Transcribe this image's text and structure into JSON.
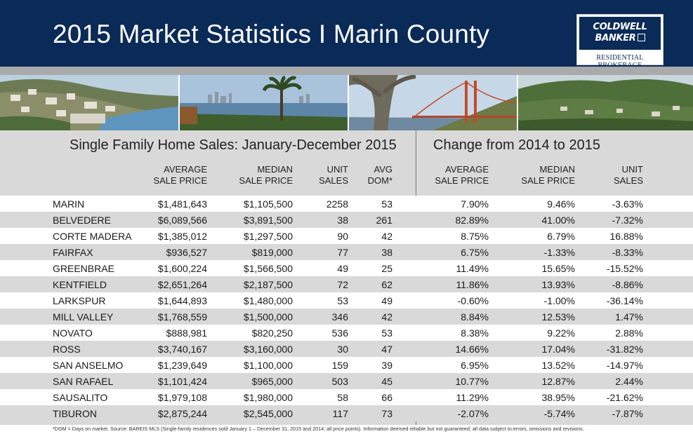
{
  "header": {
    "title": "2015 Market Statistics I Marin County",
    "logo_line1": "COLDWELL",
    "logo_line2": "BANKER",
    "logo_sub": "RESIDENTIAL BROKERAGE"
  },
  "left_section_title": "Single Family Home Sales: January-December 2015",
  "right_section_title": "Change from 2014 to 2015",
  "columns": {
    "avg_sale_price": [
      "AVERAGE",
      "SALE PRICE"
    ],
    "median_sale_price": [
      "MEDIAN",
      "SALE PRICE"
    ],
    "unit_sales": [
      "UNIT",
      "SALES"
    ],
    "avg_dom": [
      "AVG",
      "DOM*"
    ],
    "change_avg_sale_price": [
      "AVERAGE",
      "SALE PRICE"
    ],
    "change_median_sale_price": [
      "MEDIAN",
      "SALE PRICE"
    ],
    "change_unit_sales": [
      "UNIT",
      "SALES"
    ]
  },
  "rows": [
    {
      "name": "MARIN",
      "avg": "$1,481,643",
      "median": "$1,105,500",
      "units": "2258",
      "dom": "53",
      "ch_avg": "7.90%",
      "ch_median": "9.46%",
      "ch_units": "-3.63%"
    },
    {
      "name": "BELVEDERE",
      "avg": "$6,089,566",
      "median": "$3,891,500",
      "units": "38",
      "dom": "261",
      "ch_avg": "82.89%",
      "ch_median": "41.00%",
      "ch_units": "-7.32%"
    },
    {
      "name": "CORTE MADERA",
      "avg": "$1,385,012",
      "median": "$1,297,500",
      "units": "90",
      "dom": "42",
      "ch_avg": "8.75%",
      "ch_median": "6.79%",
      "ch_units": "16.88%"
    },
    {
      "name": "FAIRFAX",
      "avg": "$936,527",
      "median": "$819,000",
      "units": "77",
      "dom": "38",
      "ch_avg": "6.75%",
      "ch_median": "-1.33%",
      "ch_units": "-8.33%"
    },
    {
      "name": "GREENBRAE",
      "avg": "$1,600,224",
      "median": "$1,566,500",
      "units": "49",
      "dom": "25",
      "ch_avg": "11.49%",
      "ch_median": "15.65%",
      "ch_units": "-15.52%"
    },
    {
      "name": "KENTFIELD",
      "avg": "$2,651,264",
      "median": "$2,187,500",
      "units": "72",
      "dom": "62",
      "ch_avg": "11.86%",
      "ch_median": "13.93%",
      "ch_units": "-8.86%"
    },
    {
      "name": "LARKSPUR",
      "avg": "$1,644,893",
      "median": "$1,480,000",
      "units": "53",
      "dom": "49",
      "ch_avg": "-0.60%",
      "ch_median": "-1.00%",
      "ch_units": "-36.14%"
    },
    {
      "name": "MILL VALLEY",
      "avg": "$1,768,559",
      "median": "$1,500,000",
      "units": "346",
      "dom": "42",
      "ch_avg": "8.84%",
      "ch_median": "12.53%",
      "ch_units": "1.47%"
    },
    {
      "name": "NOVATO",
      "avg": "$888,981",
      "median": "$820,250",
      "units": "536",
      "dom": "53",
      "ch_avg": "8.38%",
      "ch_median": "9.22%",
      "ch_units": "2.88%"
    },
    {
      "name": "ROSS",
      "avg": "$3,740,167",
      "median": "$3,160,000",
      "units": "30",
      "dom": "47",
      "ch_avg": "14.66%",
      "ch_median": "17.04%",
      "ch_units": "-31.82%"
    },
    {
      "name": "SAN ANSELMO",
      "avg": "$1,239,649",
      "median": "$1,100,000",
      "units": "159",
      "dom": "39",
      "ch_avg": "6.95%",
      "ch_median": "13.52%",
      "ch_units": "-14.97%"
    },
    {
      "name": "SAN RAFAEL",
      "avg": "$1,101,424",
      "median": "$965,000",
      "units": "503",
      "dom": "45",
      "ch_avg": "10.77%",
      "ch_median": "12.87%",
      "ch_units": "2.44%"
    },
    {
      "name": "SAUSALITO",
      "avg": "$1,979,108",
      "median": "$1,980,000",
      "units": "58",
      "dom": "66",
      "ch_avg": "11.29%",
      "ch_median": "38.95%",
      "ch_units": "-21.62%"
    },
    {
      "name": "TIBURON",
      "avg": "$2,875,244",
      "median": "$2,545,000",
      "units": "117",
      "dom": "73",
      "ch_avg": "-2.07%",
      "ch_median": "-5.74%",
      "ch_units": "-7.87%"
    }
  ],
  "footnote": "*DOM = Days on market. Source: BAREIS MLS (Single-family residences sold January 1 – December 31, 2015 and 2014; all price points). Information deemed reliable but not guaranteed; all data subject to errors, omissions and revisions.",
  "colors": {
    "header_bg": "#0a2a57",
    "stripe": "#a9aaab",
    "band_gray": "#d9d9d9",
    "band_white": "#ffffff"
  }
}
